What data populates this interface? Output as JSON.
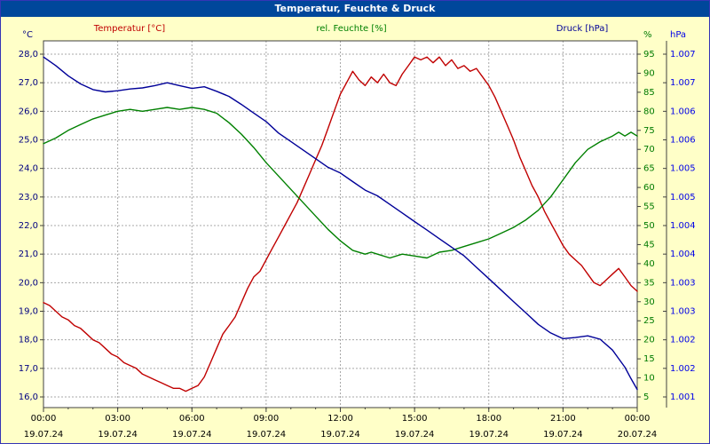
{
  "window": {
    "title": "Temperatur, Feuchte & Druck"
  },
  "colors": {
    "background": "#FFFFC8",
    "titlebar_bg": "#00479B",
    "titlebar_text": "#FFFFFF",
    "plot_bg": "#FFFFFF",
    "plot_border": "#404040",
    "grid": "#A8A8A8",
    "time_labels": "#000000"
  },
  "chart_data": {
    "type": "line",
    "title": "Temperatur, Feuchte & Druck",
    "grid": "dashed",
    "x_axis": {
      "unit": "time",
      "range_hours": [
        0,
        24
      ],
      "tick_hours": [
        0,
        3,
        6,
        9,
        12,
        15,
        18,
        21,
        24
      ],
      "tick_labels": [
        "00:00",
        "03:00",
        "06:00",
        "09:00",
        "12:00",
        "15:00",
        "18:00",
        "21:00",
        "00:00"
      ],
      "date_labels": [
        "19.07.24",
        "19.07.24",
        "19.07.24",
        "19.07.24",
        "19.07.24",
        "19.07.24",
        "19.07.24",
        "19.07.24",
        "20.07.24"
      ]
    },
    "y_axes": {
      "temperature": {
        "unit": "°C",
        "side": "left",
        "min": 16,
        "max": 28,
        "step": 1,
        "label_color": "#000080",
        "tick_labels": [
          "28,0",
          "27,0",
          "26,0",
          "25,0",
          "24,0",
          "23,0",
          "22,0",
          "21,0",
          "20,0",
          "19,0",
          "18,0",
          "17,0",
          "16,0"
        ]
      },
      "humidity": {
        "unit": "%",
        "side": "right-inner",
        "min": 5,
        "max": 95,
        "step": 5,
        "label_color": "#007A00",
        "tick_labels": [
          "95",
          "90",
          "85",
          "80",
          "75",
          "70",
          "65",
          "60",
          "55",
          "50",
          "45",
          "40",
          "35",
          "30",
          "25",
          "20",
          "15",
          "10",
          "5"
        ]
      },
      "pressure": {
        "unit": "hPa",
        "side": "right-outer",
        "min": 1.001,
        "max": 1.007,
        "step": 0.0005,
        "label_color": "#0000E8",
        "tick_labels": [
          "1.007",
          "1.007",
          "1.006",
          "1.006",
          "1.005",
          "1.005",
          "1.004",
          "1.004",
          "1.003",
          "1.003",
          "1.002",
          "1.002",
          "1.001"
        ]
      }
    },
    "series": [
      {
        "name": "Temperatur [°C]",
        "axis": "temperature",
        "color": "#C00000",
        "points": [
          [
            0,
            19.3
          ],
          [
            0.25,
            19.2
          ],
          [
            0.5,
            19
          ],
          [
            0.75,
            18.8
          ],
          [
            1,
            18.7
          ],
          [
            1.25,
            18.5
          ],
          [
            1.5,
            18.4
          ],
          [
            1.75,
            18.2
          ],
          [
            2,
            18
          ],
          [
            2.25,
            17.9
          ],
          [
            2.5,
            17.7
          ],
          [
            2.75,
            17.5
          ],
          [
            3,
            17.4
          ],
          [
            3.25,
            17.2
          ],
          [
            3.5,
            17.1
          ],
          [
            3.75,
            17
          ],
          [
            4,
            16.8
          ],
          [
            4.25,
            16.7
          ],
          [
            4.5,
            16.6
          ],
          [
            4.75,
            16.5
          ],
          [
            5,
            16.4
          ],
          [
            5.25,
            16.3
          ],
          [
            5.5,
            16.3
          ],
          [
            5.75,
            16.2
          ],
          [
            6,
            16.3
          ],
          [
            6.25,
            16.4
          ],
          [
            6.5,
            16.7
          ],
          [
            6.75,
            17.2
          ],
          [
            7,
            17.7
          ],
          [
            7.25,
            18.2
          ],
          [
            7.5,
            18.5
          ],
          [
            7.75,
            18.8
          ],
          [
            8,
            19.3
          ],
          [
            8.25,
            19.8
          ],
          [
            8.5,
            20.2
          ],
          [
            8.75,
            20.4
          ],
          [
            9,
            20.8
          ],
          [
            9.25,
            21.2
          ],
          [
            9.5,
            21.6
          ],
          [
            9.75,
            22
          ],
          [
            10,
            22.4
          ],
          [
            10.25,
            22.8
          ],
          [
            10.5,
            23.3
          ],
          [
            10.75,
            23.8
          ],
          [
            11,
            24.3
          ],
          [
            11.25,
            24.8
          ],
          [
            11.5,
            25.4
          ],
          [
            11.75,
            26
          ],
          [
            12,
            26.6
          ],
          [
            12.25,
            27
          ],
          [
            12.5,
            27.4
          ],
          [
            12.75,
            27.1
          ],
          [
            13,
            26.9
          ],
          [
            13.25,
            27.2
          ],
          [
            13.5,
            27
          ],
          [
            13.75,
            27.3
          ],
          [
            14,
            27
          ],
          [
            14.25,
            26.9
          ],
          [
            14.5,
            27.3
          ],
          [
            14.75,
            27.6
          ],
          [
            15,
            27.9
          ],
          [
            15.25,
            27.8
          ],
          [
            15.5,
            27.9
          ],
          [
            15.75,
            27.7
          ],
          [
            16,
            27.9
          ],
          [
            16.25,
            27.6
          ],
          [
            16.5,
            27.8
          ],
          [
            16.75,
            27.5
          ],
          [
            17,
            27.6
          ],
          [
            17.25,
            27.4
          ],
          [
            17.5,
            27.5
          ],
          [
            17.75,
            27.2
          ],
          [
            18,
            26.9
          ],
          [
            18.25,
            26.5
          ],
          [
            18.5,
            26
          ],
          [
            18.75,
            25.5
          ],
          [
            19,
            25
          ],
          [
            19.25,
            24.4
          ],
          [
            19.5,
            23.9
          ],
          [
            19.75,
            23.4
          ],
          [
            20,
            23
          ],
          [
            20.25,
            22.5
          ],
          [
            20.5,
            22.1
          ],
          [
            20.75,
            21.7
          ],
          [
            21,
            21.3
          ],
          [
            21.25,
            21
          ],
          [
            21.5,
            20.8
          ],
          [
            21.75,
            20.6
          ],
          [
            22,
            20.3
          ],
          [
            22.25,
            20
          ],
          [
            22.5,
            19.9
          ],
          [
            22.75,
            20.1
          ],
          [
            23,
            20.3
          ],
          [
            23.25,
            20.5
          ],
          [
            23.5,
            20.2
          ],
          [
            23.75,
            19.9
          ],
          [
            24,
            19.7
          ]
        ]
      },
      {
        "name": "rel. Feuchte [%]",
        "axis": "humidity",
        "color": "#008000",
        "points": [
          [
            0,
            71.5
          ],
          [
            0.5,
            73
          ],
          [
            1,
            75
          ],
          [
            1.5,
            76.5
          ],
          [
            2,
            78
          ],
          [
            2.5,
            79
          ],
          [
            3,
            80
          ],
          [
            3.5,
            80.5
          ],
          [
            4,
            80
          ],
          [
            4.5,
            80.5
          ],
          [
            5,
            81
          ],
          [
            5.5,
            80.5
          ],
          [
            6,
            81
          ],
          [
            6.5,
            80.5
          ],
          [
            7,
            79.5
          ],
          [
            7.5,
            77
          ],
          [
            8,
            74
          ],
          [
            8.5,
            70.5
          ],
          [
            9,
            66.5
          ],
          [
            9.5,
            63
          ],
          [
            10,
            59.5
          ],
          [
            10.5,
            56
          ],
          [
            11,
            52.5
          ],
          [
            11.5,
            49
          ],
          [
            12,
            46
          ],
          [
            12.5,
            43.5
          ],
          [
            13,
            42.5
          ],
          [
            13.25,
            43
          ],
          [
            13.5,
            42.5
          ],
          [
            14,
            41.5
          ],
          [
            14.5,
            42.5
          ],
          [
            15,
            42
          ],
          [
            15.5,
            41.5
          ],
          [
            16,
            43
          ],
          [
            16.5,
            43.5
          ],
          [
            17,
            44.5
          ],
          [
            17.5,
            45.5
          ],
          [
            18,
            46.5
          ],
          [
            18.5,
            48
          ],
          [
            19,
            49.5
          ],
          [
            19.5,
            51.5
          ],
          [
            20,
            54
          ],
          [
            20.5,
            57.5
          ],
          [
            21,
            62
          ],
          [
            21.5,
            66.5
          ],
          [
            22,
            70
          ],
          [
            22.5,
            72
          ],
          [
            23,
            73.5
          ],
          [
            23.25,
            74.5
          ],
          [
            23.5,
            73.5
          ],
          [
            23.75,
            74.5
          ],
          [
            24,
            73.5
          ]
        ]
      },
      {
        "name": "Druck [hPa]",
        "axis": "pressure",
        "color": "#000098",
        "points": [
          [
            0,
            1.00695
          ],
          [
            0.5,
            1.0068
          ],
          [
            1,
            1.00662
          ],
          [
            1.5,
            1.00648
          ],
          [
            2,
            1.00638
          ],
          [
            2.5,
            1.00634
          ],
          [
            3,
            1.00636
          ],
          [
            3.5,
            1.00639
          ],
          [
            4,
            1.00641
          ],
          [
            4.5,
            1.00645
          ],
          [
            5,
            1.0065
          ],
          [
            5.5,
            1.00645
          ],
          [
            6,
            1.0064
          ],
          [
            6.5,
            1.00643
          ],
          [
            7,
            1.00635
          ],
          [
            7.5,
            1.00626
          ],
          [
            8,
            1.00612
          ],
          [
            8.5,
            1.00597
          ],
          [
            9,
            1.00582
          ],
          [
            9.5,
            1.00562
          ],
          [
            10,
            1.00547
          ],
          [
            10.5,
            1.00532
          ],
          [
            11,
            1.00517
          ],
          [
            11.5,
            1.00502
          ],
          [
            12,
            1.00492
          ],
          [
            12.5,
            1.00477
          ],
          [
            13,
            1.00462
          ],
          [
            13.5,
            1.00452
          ],
          [
            14,
            1.00437
          ],
          [
            14.5,
            1.00422
          ],
          [
            15,
            1.00407
          ],
          [
            15.5,
            1.00392
          ],
          [
            16,
            1.00377
          ],
          [
            16.5,
            1.00362
          ],
          [
            17,
            1.00347
          ],
          [
            17.5,
            1.00327
          ],
          [
            18,
            1.00307
          ],
          [
            18.5,
            1.00287
          ],
          [
            19,
            1.00267
          ],
          [
            19.5,
            1.00247
          ],
          [
            20,
            1.00227
          ],
          [
            20.5,
            1.00212
          ],
          [
            21,
            1.00202
          ],
          [
            21.5,
            1.00204
          ],
          [
            22,
            1.00207
          ],
          [
            22.5,
            1.00201
          ],
          [
            23,
            1.00182
          ],
          [
            23.25,
            1.00167
          ],
          [
            23.5,
            1.00152
          ],
          [
            23.75,
            1.00132
          ],
          [
            24,
            1.00113
          ]
        ]
      }
    ]
  }
}
